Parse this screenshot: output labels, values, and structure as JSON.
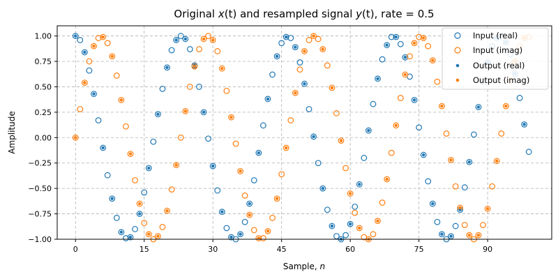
{
  "chart_data": {
    "type": "scatter",
    "title": "Original x(t) and resampled signal y(t), rate = 0.5",
    "title_parts": {
      "before": "Original ",
      "x_sym": "x",
      "x_arg": "(t)",
      "middle": " and resampled signal ",
      "y_sym": "y",
      "y_arg": "(t)",
      "after": ", rate = 0.5"
    },
    "xlabel": "Sample, n",
    "xlabel_parts": {
      "prefix": "Sample, ",
      "var": "n"
    },
    "ylabel": "Amplitude",
    "xlim": [
      -4,
      104
    ],
    "ylim": [
      -1.0,
      1.1
    ],
    "xticks": [
      0,
      15,
      30,
      45,
      60,
      75,
      90
    ],
    "yticks": [
      -1.0,
      -0.75,
      -0.5,
      -0.25,
      0.0,
      0.25,
      0.5,
      0.75,
      1.0
    ],
    "ytick_labels": [
      "−1.00",
      "−0.75",
      "−0.50",
      "−0.25",
      "0.00",
      "0.25",
      "0.50",
      "0.75",
      "1.00"
    ],
    "grid": true,
    "legend_position": "top-right",
    "colors": {
      "real": "#1f77b4",
      "imag": "#ff7f0e"
    },
    "signal_model": "x[n] = exp(j*2*pi*f*n), f = 0.045; output samples at even n equal input samples",
    "series": [
      {
        "name": "Input (real)",
        "marker": "hollow-circle",
        "color": "#1f77b4",
        "x_start": 0,
        "x_step": 1,
        "values": [
          1.0,
          0.96,
          0.84,
          0.66,
          0.43,
          0.17,
          -0.1,
          -0.37,
          -0.6,
          -0.79,
          -0.93,
          -0.99,
          -0.98,
          -0.9,
          -0.75,
          -0.54,
          -0.3,
          -0.04,
          0.23,
          0.48,
          0.69,
          0.86,
          0.96,
          1.0,
          0.97,
          0.87,
          0.71,
          0.5,
          0.25,
          -0.01,
          -0.28,
          -0.52,
          -0.73,
          -0.89,
          -0.98,
          -1.0,
          -0.95,
          -0.83,
          -0.65,
          -0.42,
          -0.15,
          0.12,
          0.38,
          0.62,
          0.8,
          0.93,
          0.99,
          0.98,
          0.89,
          0.74,
          0.53,
          0.28,
          0.01,
          -0.25,
          -0.5,
          -0.71,
          -0.87,
          -0.97,
          -1.0,
          -0.96,
          -0.85,
          -0.68,
          -0.46,
          -0.2,
          0.07,
          0.33,
          0.58,
          0.77,
          0.91,
          0.99,
          0.99,
          0.92,
          0.79,
          0.6,
          0.37,
          0.1,
          -0.17,
          -0.43,
          -0.65,
          -0.83,
          -0.95,
          -1.0,
          -0.97,
          -0.87,
          -0.71,
          -0.49,
          -0.24,
          0.03,
          0.3,
          0.55,
          0.74,
          0.9,
          0.98,
          1.0,
          0.94,
          0.82,
          0.63,
          0.39,
          0.13,
          -0.14
        ]
      },
      {
        "name": "Input (imag)",
        "marker": "hollow-circle",
        "color": "#ff7f0e",
        "x_start": 0,
        "x_step": 1,
        "values": [
          0.0,
          0.28,
          0.54,
          0.75,
          0.9,
          0.98,
          0.99,
          0.93,
          0.8,
          0.61,
          0.37,
          0.11,
          -0.16,
          -0.42,
          -0.65,
          -0.84,
          -0.95,
          -1.0,
          -0.97,
          -0.88,
          -0.72,
          -0.51,
          -0.27,
          0.0,
          0.26,
          0.5,
          0.7,
          0.87,
          0.97,
          1.0,
          0.96,
          0.85,
          0.68,
          0.46,
          0.2,
          -0.06,
          -0.33,
          -0.57,
          -0.76,
          -0.91,
          -0.99,
          -0.99,
          -0.92,
          -0.79,
          -0.6,
          -0.36,
          -0.1,
          0.17,
          0.44,
          0.67,
          0.85,
          0.96,
          1.0,
          0.97,
          0.87,
          0.71,
          0.49,
          0.24,
          -0.03,
          -0.3,
          -0.55,
          -0.74,
          -0.89,
          -0.98,
          -1.0,
          -0.95,
          -0.82,
          -0.64,
          -0.41,
          -0.15,
          0.12,
          0.39,
          0.62,
          0.8,
          0.93,
          0.99,
          0.98,
          0.9,
          0.76,
          0.55,
          0.31,
          0.04,
          -0.22,
          -0.48,
          -0.69,
          -0.86,
          -0.96,
          -1.0,
          -0.96,
          -0.86,
          -0.7,
          -0.48,
          -0.23,
          0.04,
          0.31,
          0.56,
          0.75,
          0.9,
          0.98,
          0.99
        ]
      },
      {
        "name": "Output (real)",
        "marker": "filled-dot",
        "color": "#1f77b4",
        "x_start": 0,
        "x_step": 2,
        "values": [
          1.0,
          0.84,
          0.43,
          -0.1,
          -0.6,
          -0.93,
          -0.98,
          -0.75,
          -0.3,
          0.23,
          0.69,
          0.96,
          0.97,
          0.71,
          0.25,
          -0.28,
          -0.73,
          -0.98,
          -0.95,
          -0.65,
          -0.15,
          0.38,
          0.8,
          0.99,
          0.89,
          0.53,
          0.01,
          -0.5,
          -0.87,
          -1.0,
          -0.85,
          -0.46,
          0.07,
          0.58,
          0.91,
          0.99,
          0.79,
          0.37,
          -0.17,
          -0.65,
          -0.95,
          -0.97,
          -0.71,
          -0.24,
          0.3,
          0.74,
          0.98,
          0.94,
          0.63,
          0.13
        ]
      },
      {
        "name": "Output (imag)",
        "marker": "filled-dot",
        "color": "#ff7f0e",
        "x_start": 0,
        "x_step": 2,
        "values": [
          0.0,
          0.54,
          0.9,
          0.99,
          0.8,
          0.37,
          -0.16,
          -0.65,
          -0.95,
          -0.97,
          -0.72,
          -0.27,
          0.26,
          0.7,
          0.97,
          0.96,
          0.68,
          0.2,
          -0.33,
          -0.76,
          -0.99,
          -0.92,
          -0.6,
          -0.1,
          0.44,
          0.85,
          1.0,
          0.87,
          0.49,
          -0.03,
          -0.55,
          -0.89,
          -1.0,
          -0.82,
          -0.41,
          0.12,
          0.62,
          0.93,
          0.98,
          0.76,
          0.31,
          -0.22,
          -0.69,
          -0.96,
          -0.96,
          -0.7,
          -0.23,
          0.31,
          0.75,
          0.98
        ]
      }
    ]
  }
}
